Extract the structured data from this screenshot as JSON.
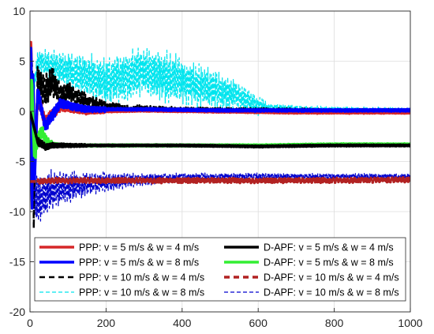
{
  "chart_data": {
    "type": "line",
    "title": "",
    "xlabel": "",
    "ylabel": "",
    "xlim": [
      0,
      1000
    ],
    "ylim": [
      -20,
      10
    ],
    "x_ticks": [
      0,
      200,
      400,
      600,
      800,
      1000
    ],
    "y_ticks": [
      -20,
      -15,
      -10,
      -5,
      0,
      5,
      10
    ],
    "x_tick_labels": [
      "0",
      "200",
      "400",
      "600",
      "800",
      "1000"
    ],
    "y_tick_labels": [
      "-20",
      "-15",
      "-10",
      "-5",
      "0",
      "5",
      "10"
    ],
    "grid": true,
    "legend_position": "bottom",
    "series": [
      {
        "name": "PPP: v = 5 m/s & w = 4 m/s",
        "color": "#d62728",
        "style": "solid",
        "width": 3.5,
        "x": [
          0,
          3,
          5,
          8,
          12,
          20,
          40,
          80,
          150,
          300,
          500,
          700,
          850,
          1000
        ],
        "y": [
          0,
          9.3,
          -12,
          4,
          -6,
          1.5,
          -1,
          0.5,
          0,
          0.1,
          0,
          -0.1,
          -0.1,
          -0.1
        ]
      },
      {
        "name": "PPP: v = 5 m/s & w = 8 m/s",
        "color": "#0000ff",
        "style": "solid",
        "width": 3.5,
        "x": [
          0,
          3,
          5,
          8,
          12,
          20,
          40,
          80,
          150,
          300,
          500,
          700,
          850,
          1000
        ],
        "y": [
          0,
          8.5,
          -13,
          5,
          -7,
          2,
          -1.5,
          0.8,
          0.2,
          0.2,
          0.1,
          0.1,
          0.1,
          0.1
        ]
      },
      {
        "name": "PPP: v = 10 m/s & w = 4 m/s",
        "color": "#000000",
        "style": "dashed",
        "width": 2.5,
        "x": [
          0,
          5,
          10,
          20,
          40,
          60,
          80,
          100,
          150,
          200,
          300,
          400,
          600,
          800,
          1000
        ],
        "y": [
          0,
          6,
          -10,
          3,
          2,
          3,
          1.5,
          2,
          1,
          0.5,
          0.3,
          0.2,
          0.2,
          0.1,
          0.1
        ]
      },
      {
        "name": "PPP: v = 10 m/s & w = 8 m/s",
        "color": "#00e5ee",
        "style": "dashed",
        "width": 1.3,
        "x": [
          0,
          20,
          60,
          100,
          150,
          200,
          250,
          300,
          400,
          500,
          550,
          600,
          700,
          800,
          1000
        ],
        "y": [
          0,
          5,
          4.5,
          4,
          3.5,
          3,
          3.5,
          4,
          3,
          2,
          1.5,
          0.5,
          0.3,
          0.2,
          0.1
        ],
        "amplitude_note": "oscillating envelope"
      },
      {
        "name": "D-APF: v = 5 m/s & w = 4 m/s",
        "color": "#000000",
        "style": "solid",
        "width": 3.5,
        "x": [
          0,
          20,
          40,
          60,
          100,
          200,
          400,
          600,
          800,
          1000
        ],
        "y": [
          0,
          -3,
          -3.5,
          -3.4,
          -3.4,
          -3.4,
          -3.4,
          -3.5,
          -3.4,
          -3.4
        ]
      },
      {
        "name": "D-APF: v = 5 m/s & w = 8 m/s",
        "color": "#33ee33",
        "style": "solid",
        "width": 3.5,
        "x": [
          0,
          5,
          10,
          20,
          30,
          50,
          100,
          200,
          400,
          600,
          800,
          1000
        ],
        "y": [
          0,
          3.5,
          -4,
          -3,
          -2,
          -3.2,
          -3.4,
          -3.4,
          -3.4,
          -3.4,
          -3.3,
          -3.3
        ]
      },
      {
        "name": "D-APF: v = 10 m/s & w = 4 m/s",
        "color": "#b22222",
        "style": "dashed",
        "width": 3.5,
        "x": [
          0,
          20,
          60,
          100,
          200,
          400,
          600,
          800,
          1000
        ],
        "y": [
          -7,
          -7,
          -6.9,
          -6.9,
          -6.9,
          -6.9,
          -6.9,
          -6.9,
          -6.8
        ]
      },
      {
        "name": "D-APF: v = 10 m/s & w = 8 m/s",
        "color": "#0000cd",
        "style": "dashed",
        "width": 1.3,
        "x": [
          0,
          20,
          50,
          100,
          200,
          300,
          400,
          600,
          800,
          1000
        ],
        "y": [
          -7,
          -9,
          -8,
          -7.5,
          -7,
          -6.8,
          -6.6,
          -6.5,
          -6.5,
          -6.5
        ]
      }
    ]
  }
}
